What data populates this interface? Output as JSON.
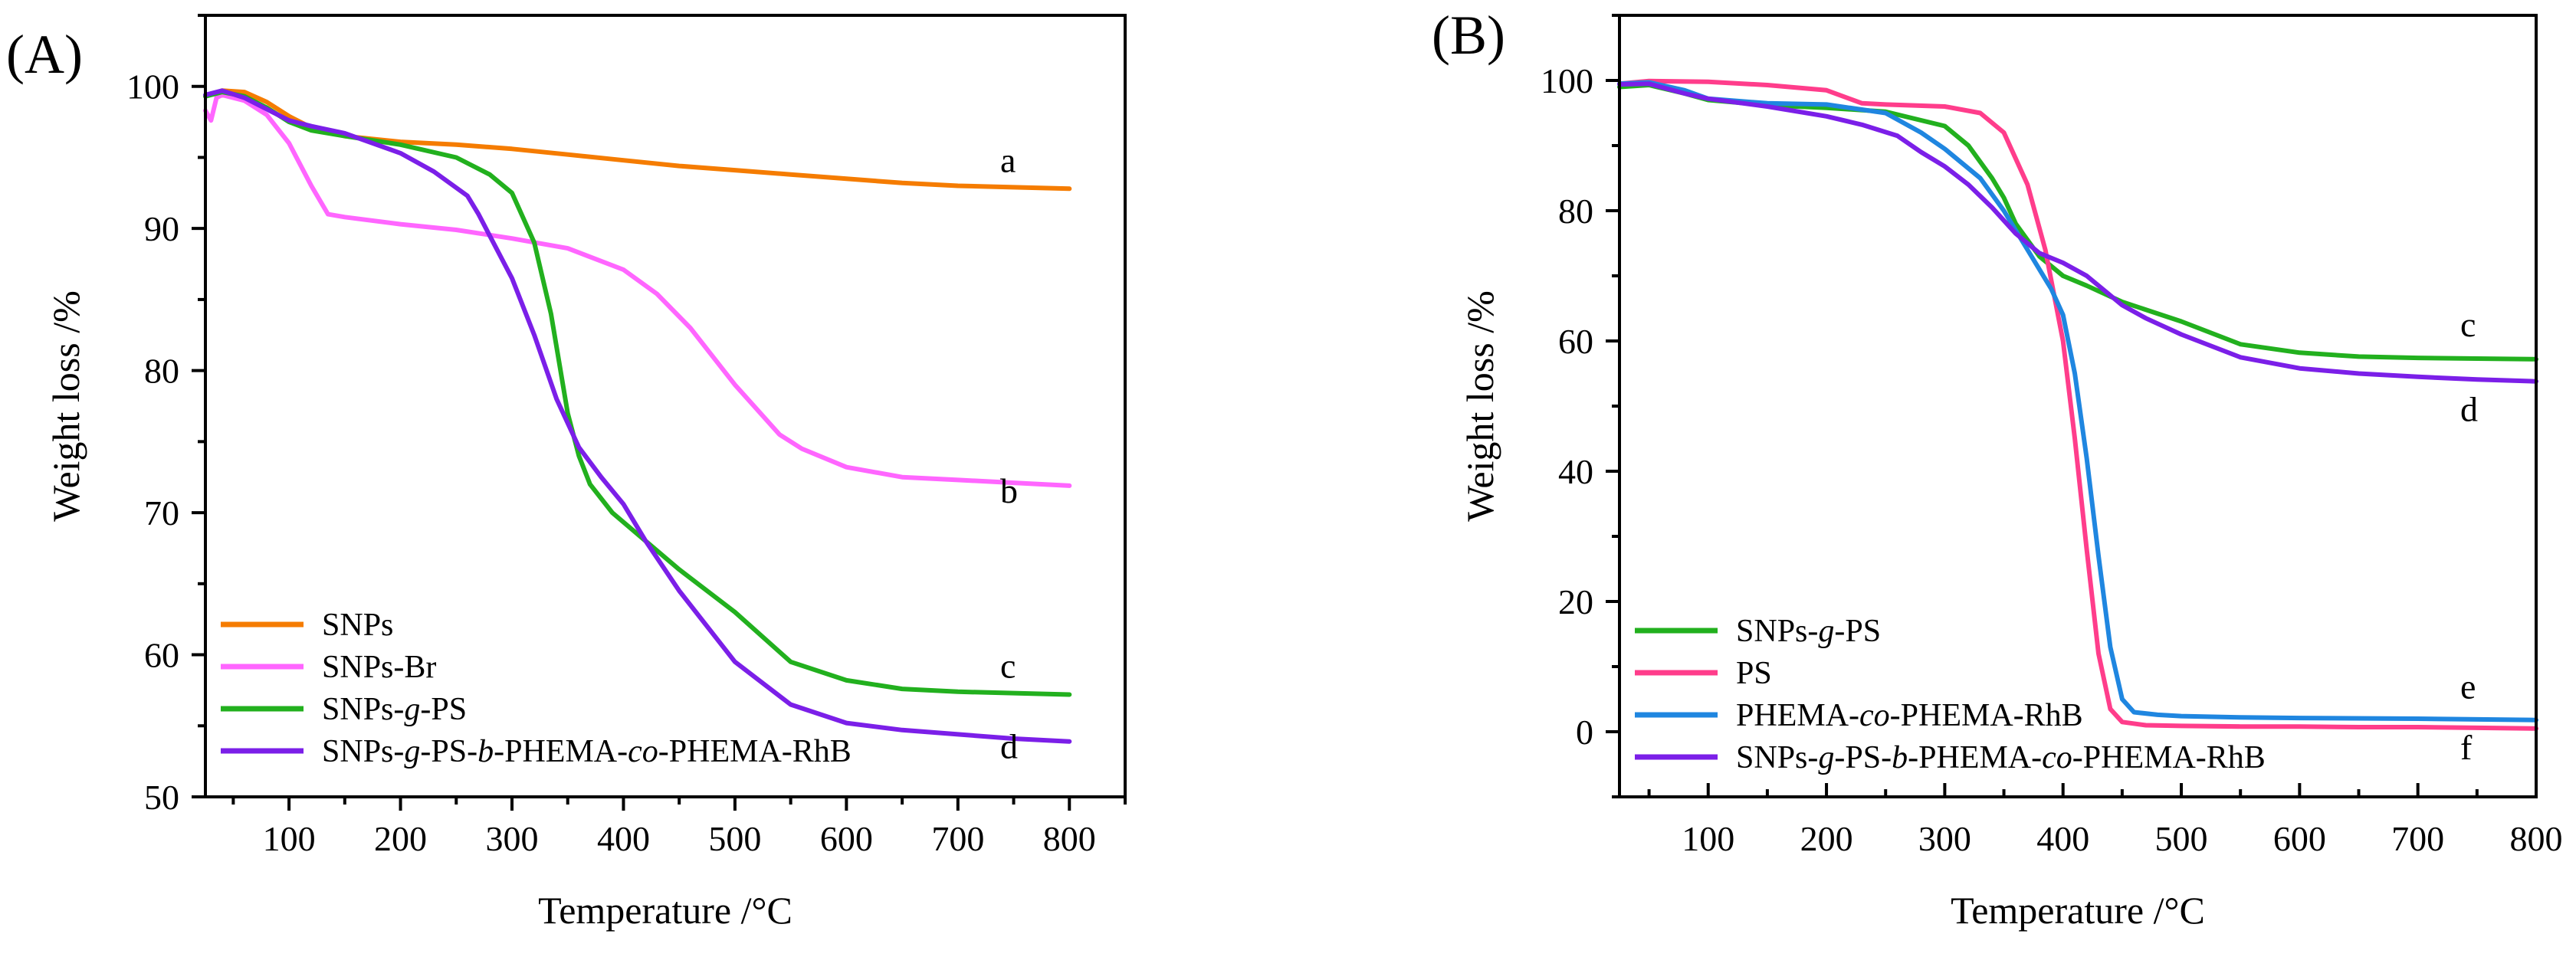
{
  "chart_data": [
    {
      "type": "line",
      "panel_label": "(A)",
      "xlabel": "Temperature /°C",
      "ylabel": "Weight loss /%",
      "xlim": [
        25,
        850
      ],
      "ylim": [
        50,
        105
      ],
      "xticks": [
        100,
        200,
        300,
        400,
        500,
        600,
        700,
        800
      ],
      "yticks": [
        50,
        60,
        70,
        80,
        90,
        100
      ],
      "legend_position": "bottom-left",
      "series": [
        {
          "name": "SNPs",
          "color": "#f57c00",
          "end_label": "a",
          "x": [
            25,
            40,
            60,
            80,
            100,
            120,
            150,
            200,
            250,
            300,
            350,
            400,
            450,
            500,
            550,
            600,
            650,
            700,
            750,
            800
          ],
          "y": [
            99.3,
            99.7,
            99.6,
            98.9,
            97.9,
            97.1,
            96.5,
            96.1,
            95.9,
            95.6,
            95.2,
            94.8,
            94.4,
            94.1,
            93.8,
            93.5,
            93.2,
            93.0,
            92.9,
            92.8
          ]
        },
        {
          "name": "SNPs-Br",
          "color": "#ff66ff",
          "end_label": "b",
          "x": [
            25,
            30,
            35,
            40,
            60,
            80,
            100,
            120,
            135,
            150,
            200,
            250,
            300,
            350,
            400,
            430,
            460,
            500,
            540,
            560,
            600,
            650,
            700,
            750,
            800
          ],
          "y": [
            98.3,
            97.6,
            99.2,
            99.4,
            99.0,
            98.0,
            96.0,
            93.0,
            91.0,
            90.8,
            90.3,
            89.9,
            89.3,
            88.6,
            87.1,
            85.4,
            83.0,
            79.0,
            75.5,
            74.5,
            73.2,
            72.5,
            72.3,
            72.1,
            71.9
          ]
        },
        {
          "name": "SNPs-g-PS",
          "color": "#22b01e",
          "end_label": "c",
          "x": [
            25,
            40,
            60,
            80,
            100,
            120,
            150,
            200,
            250,
            280,
            300,
            320,
            335,
            350,
            360,
            370,
            390,
            420,
            450,
            500,
            550,
            600,
            650,
            700,
            750,
            800
          ],
          "y": [
            99.3,
            99.6,
            99.3,
            98.5,
            97.5,
            96.9,
            96.5,
            95.9,
            95.0,
            93.8,
            92.5,
            89.0,
            84.0,
            77.0,
            74.0,
            72.0,
            70.0,
            68.0,
            66.0,
            63.0,
            59.5,
            58.2,
            57.6,
            57.4,
            57.3,
            57.2
          ]
        },
        {
          "name": "SNPs-g-PS-b-PHEMA-co-PHEMA-RhB",
          "color": "#7b1fe8",
          "end_label": "d",
          "x": [
            25,
            40,
            60,
            80,
            100,
            120,
            150,
            200,
            230,
            260,
            270,
            280,
            300,
            320,
            340,
            360,
            380,
            400,
            420,
            450,
            500,
            550,
            600,
            650,
            700,
            750,
            800
          ],
          "y": [
            99.4,
            99.7,
            99.2,
            98.4,
            97.6,
            97.2,
            96.7,
            95.3,
            94.0,
            92.3,
            91.0,
            89.5,
            86.5,
            82.5,
            78.0,
            74.6,
            72.5,
            70.6,
            68.0,
            64.5,
            59.5,
            56.5,
            55.2,
            54.7,
            54.4,
            54.1,
            53.9
          ]
        }
      ]
    },
    {
      "type": "line",
      "panel_label": "(B)",
      "xlabel": "Temperature /°C",
      "ylabel": "Weight loss /%",
      "xlim": [
        25,
        800
      ],
      "ylim": [
        -10,
        110
      ],
      "xticks": [
        100,
        200,
        300,
        400,
        500,
        600,
        700,
        800
      ],
      "yticks": [
        0,
        20,
        40,
        60,
        80,
        100
      ],
      "legend_position": "bottom-left",
      "series": [
        {
          "name": "SNPs-g-PS",
          "color": "#22b01e",
          "end_label": "c",
          "x": [
            25,
            50,
            80,
            100,
            150,
            200,
            250,
            300,
            320,
            340,
            350,
            360,
            380,
            400,
            420,
            450,
            500,
            550,
            600,
            650,
            700,
            750,
            800
          ],
          "y": [
            99.0,
            99.3,
            98.0,
            97.0,
            96.2,
            95.8,
            95.2,
            93.0,
            90.0,
            85.0,
            82.0,
            78.0,
            73.0,
            70.0,
            68.5,
            66.0,
            63.0,
            59.5,
            58.2,
            57.6,
            57.4,
            57.3,
            57.2
          ]
        },
        {
          "name": "PS",
          "color": "#ff3d8b",
          "end_label": "f",
          "x": [
            25,
            50,
            100,
            150,
            200,
            230,
            250,
            300,
            330,
            350,
            370,
            385,
            400,
            410,
            420,
            430,
            440,
            450,
            470,
            500,
            550,
            600,
            650,
            700,
            750,
            800
          ],
          "y": [
            99.5,
            99.9,
            99.8,
            99.3,
            98.5,
            96.5,
            96.3,
            96.0,
            95.0,
            92.0,
            84.0,
            74.0,
            60.0,
            45.0,
            28.0,
            12.0,
            3.5,
            1.5,
            1.0,
            0.9,
            0.8,
            0.8,
            0.7,
            0.7,
            0.6,
            0.5
          ]
        },
        {
          "name": "PHEMA-co-PHEMA-RhB",
          "color": "#1f86e0",
          "end_label": "e",
          "x": [
            25,
            50,
            80,
            100,
            150,
            200,
            250,
            280,
            300,
            330,
            350,
            370,
            390,
            400,
            410,
            420,
            430,
            440,
            450,
            460,
            480,
            500,
            550,
            600,
            700,
            800
          ],
          "y": [
            99.5,
            99.7,
            98.5,
            97.2,
            96.5,
            96.3,
            95.0,
            92.0,
            89.5,
            85.0,
            80.0,
            74.0,
            68.0,
            64.0,
            55.0,
            42.0,
            27.0,
            13.0,
            5.0,
            3.0,
            2.6,
            2.4,
            2.2,
            2.1,
            2.0,
            1.8
          ]
        },
        {
          "name": "SNPs-g-PS-b-PHEMA-co-PHEMA-RhB",
          "color": "#7b1fe8",
          "end_label": "d",
          "x": [
            25,
            50,
            80,
            100,
            150,
            200,
            230,
            260,
            280,
            300,
            320,
            340,
            360,
            380,
            400,
            420,
            440,
            450,
            470,
            500,
            550,
            600,
            650,
            700,
            750,
            800
          ],
          "y": [
            99.4,
            99.5,
            98.0,
            97.2,
            96.0,
            94.5,
            93.2,
            91.5,
            89.0,
            86.8,
            84.0,
            80.5,
            76.5,
            73.5,
            72.0,
            70.0,
            67.0,
            65.5,
            63.5,
            61.0,
            57.5,
            55.8,
            55.0,
            54.5,
            54.1,
            53.8
          ]
        }
      ]
    }
  ]
}
